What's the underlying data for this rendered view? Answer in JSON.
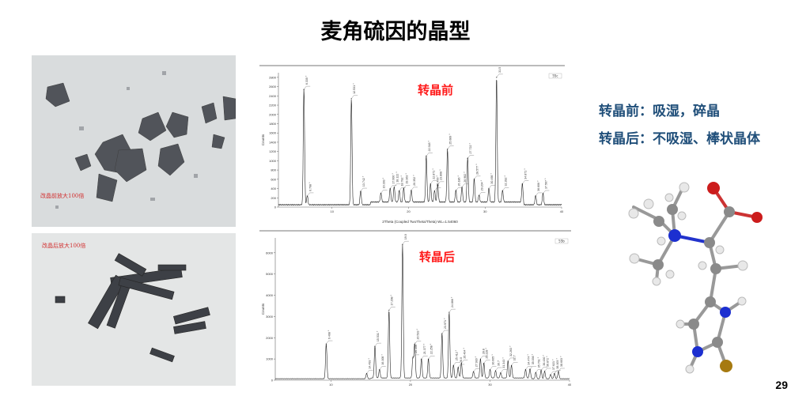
{
  "title": "麦角硫因的晶型",
  "photos": {
    "before_caption": "改晶前放大100倍",
    "after_caption": "改晶后放大100倍"
  },
  "notes": {
    "before": "转晶前：吸湿，碎晶",
    "after": "转晶后：不吸湿、棒状晶体"
  },
  "page_number": "29",
  "chart_data": [
    {
      "type": "line",
      "title": "转晶前",
      "xlabel": "2Theta (Coupled TwoTheta/Theta) WL=1.54060",
      "ylabel": "Counts",
      "legend": "55c",
      "xlim": [
        3,
        40
      ],
      "ylim": [
        0,
        2900
      ],
      "xticks": [
        10,
        20,
        30,
        40
      ],
      "yticks": [
        0,
        200,
        400,
        600,
        800,
        1000,
        1200,
        1400,
        1600,
        1800,
        2000,
        2200,
        2400,
        2600,
        2800
      ],
      "peaks": [
        {
          "x": 6.33,
          "y": 2500,
          "label": "6.330 °"
        },
        {
          "x": 6.768,
          "y": 200,
          "label": "6.768 °"
        },
        {
          "x": 12.531,
          "y": 2300,
          "label": "12.531 °"
        },
        {
          "x": 13.742,
          "y": 300,
          "label": "13.742 °"
        },
        {
          "x": 16.393,
          "y": 200,
          "label": "16.393 °"
        },
        {
          "x": 17.6,
          "y": 300,
          "label": "17.600 °"
        },
        {
          "x": 18.122,
          "y": 330,
          "label": "18.122 °"
        },
        {
          "x": 18.782,
          "y": 250,
          "label": "18.782 °"
        },
        {
          "x": 19.363,
          "y": 300,
          "label": "19.363 °"
        },
        {
          "x": 20.352,
          "y": 260,
          "label": "20.352 °"
        },
        {
          "x": 22.318,
          "y": 1000,
          "label": "22.318 °"
        },
        {
          "x": 22.871,
          "y": 400,
          "label": "22.871 °"
        },
        {
          "x": 23.4,
          "y": 250,
          "label": "23.400 °"
        },
        {
          "x": 23.808,
          "y": 380,
          "label": "23.808 °"
        },
        {
          "x": 25.089,
          "y": 1150,
          "label": "25.089 °"
        },
        {
          "x": 26.186,
          "y": 250,
          "label": "26.186 °"
        },
        {
          "x": 26.982,
          "y": 330,
          "label": "26.982 °"
        },
        {
          "x": 27.722,
          "y": 950,
          "label": "27.722 °"
        },
        {
          "x": 28.577,
          "y": 500,
          "label": "28.577 °"
        },
        {
          "x": 29.204,
          "y": 150,
          "label": "29.204 °"
        },
        {
          "x": 30.498,
          "y": 300,
          "label": "30.498 °"
        },
        {
          "x": 31.5,
          "y": 2700,
          "label": "31.5"
        },
        {
          "x": 32.282,
          "y": 250,
          "label": "32.282 °"
        },
        {
          "x": 34.871,
          "y": 400,
          "label": "34.871 °"
        },
        {
          "x": 36.606,
          "y": 200,
          "label": "36.606 °"
        },
        {
          "x": 37.567,
          "y": 250,
          "label": "37.567 °"
        }
      ]
    },
    {
      "type": "line",
      "title": "转晶后",
      "ylabel": "Counts",
      "legend": "55b",
      "xlim": [
        3,
        40
      ],
      "ylim": [
        0,
        6700
      ],
      "xticks": [
        10,
        20,
        30,
        40
      ],
      "yticks": [
        0,
        1000,
        2000,
        3000,
        4000,
        5000,
        6000
      ],
      "peaks": [
        {
          "x": 9.408,
          "y": 1650,
          "label": "9.408 °"
        },
        {
          "x": 14.493,
          "y": 250,
          "label": "14.493 °"
        },
        {
          "x": 15.531,
          "y": 1500,
          "label": "15.531 °"
        },
        {
          "x": 16.108,
          "y": 400,
          "label": "16.108 °"
        },
        {
          "x": 17.298,
          "y": 3200,
          "label": "17.298 °"
        },
        {
          "x": 19.0,
          "y": 6300,
          "label": "19.0"
        },
        {
          "x": 20.306,
          "y": 950,
          "label": "20.306 °"
        },
        {
          "x": 20.533,
          "y": 1600,
          "label": "20.533 °"
        },
        {
          "x": 21.377,
          "y": 900,
          "label": "21.377 °"
        },
        {
          "x": 22.258,
          "y": 900,
          "label": "22.258 °"
        },
        {
          "x": 23.971,
          "y": 2100,
          "label": "23.971 °"
        },
        {
          "x": 24.866,
          "y": 3100,
          "label": "24.866 °"
        },
        {
          "x": 25.412,
          "y": 600,
          "label": "25.412 °"
        },
        {
          "x": 26.0,
          "y": 500,
          "label": "26.0"
        },
        {
          "x": 26.404,
          "y": 700,
          "label": "26.404 °"
        },
        {
          "x": 27.93,
          "y": 300,
          "label": "27.930 °"
        },
        {
          "x": 28.8,
          "y": 900,
          "label": "28.8"
        },
        {
          "x": 29.228,
          "y": 700,
          "label": "29.228 °"
        },
        {
          "x": 30.005,
          "y": 400,
          "label": "30.005 °"
        },
        {
          "x": 30.7,
          "y": 350,
          "label": "30.7"
        },
        {
          "x": 31.343,
          "y": 250,
          "label": "31.343 °"
        },
        {
          "x": 32.263,
          "y": 800,
          "label": "32.263 °"
        },
        {
          "x": 32.7,
          "y": 600,
          "label": "32.7"
        },
        {
          "x": 34.474,
          "y": 400,
          "label": "34.474 °"
        },
        {
          "x": 35.036,
          "y": 450,
          "label": "35.036 °"
        },
        {
          "x": 35.761,
          "y": 300,
          "label": "35.761 °"
        },
        {
          "x": 36.43,
          "y": 400,
          "label": "36.430 °"
        },
        {
          "x": 36.872,
          "y": 350,
          "label": "36.872 °"
        },
        {
          "x": 37.621,
          "y": 200,
          "label": "37.621 °"
        },
        {
          "x": 38.103,
          "y": 250,
          "label": "38.103 °"
        },
        {
          "x": 38.603,
          "y": 350,
          "label": "38.603 °"
        }
      ]
    }
  ]
}
